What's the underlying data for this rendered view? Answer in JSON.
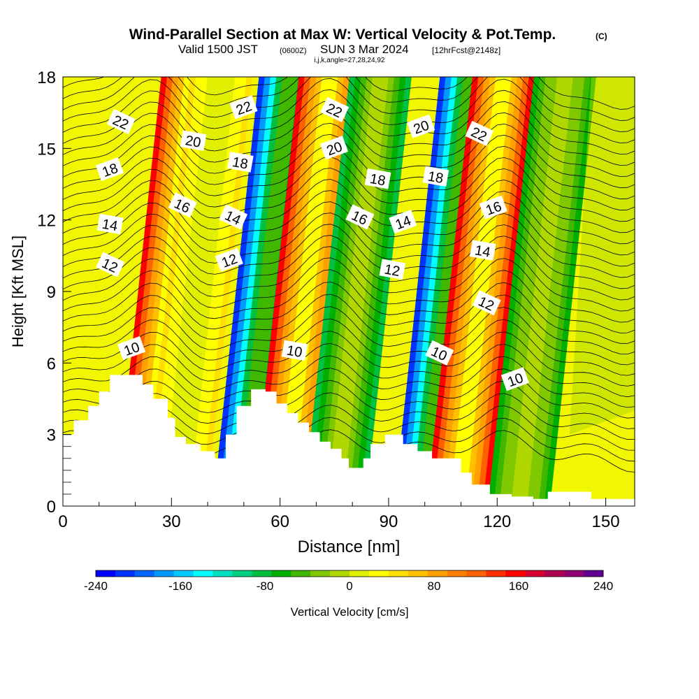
{
  "header": {
    "title": "Wind-Parallel Section at Max W: Vertical Velocity & Pot.Temp.",
    "copyright": "(C)",
    "valid_prefix": "Valid 1500 JST",
    "valid_zulu": "(0600Z)",
    "valid_date": "SUN 3 Mar 2024",
    "forecast": "[12hrFcst@2148z]",
    "indices": "i,j,k,angle=27,28,24,92"
  },
  "chart_data": {
    "type": "heatmap",
    "title": "Wind-Parallel Section at Max W: Vertical Velocity & Pot.Temp.",
    "xlabel": "Distance [nm]",
    "ylabel": "Height [Kft MSL]",
    "xlim": [
      0,
      158
    ],
    "ylim": [
      0,
      18
    ],
    "x_ticks": [
      "0",
      "30",
      "60",
      "90",
      "120",
      "150"
    ],
    "x_tick_values": [
      0,
      30,
      60,
      90,
      120,
      150
    ],
    "y_ticks": [
      "0",
      "3",
      "6",
      "9",
      "12",
      "15",
      "18"
    ],
    "y_tick_values": [
      0,
      3,
      6,
      9,
      12,
      15,
      18
    ],
    "colorbar": {
      "label": "Vertical Velocity [cm/s]",
      "tick_labels": [
        "-240",
        "-160",
        "-80",
        "0",
        "80",
        "160",
        "240"
      ],
      "min": -240,
      "max": 240,
      "colors": [
        "#0000ff",
        "#0033ff",
        "#0066ff",
        "#0099ff",
        "#00ccff",
        "#00ffff",
        "#00e0c0",
        "#00d080",
        "#00c040",
        "#00b000",
        "#40b800",
        "#80c800",
        "#b0d800",
        "#e0f000",
        "#ffff00",
        "#ffe000",
        "#ffc000",
        "#ffa000",
        "#ff8000",
        "#ff6000",
        "#ff3000",
        "#ff0000",
        "#d80030",
        "#b00050",
        "#900070",
        "#600090"
      ]
    },
    "vertical_velocity_bands": [
      {
        "x": 27,
        "w": 150
      },
      {
        "x": 35,
        "w": 40
      },
      {
        "x": 54,
        "w": -220
      },
      {
        "x": 65,
        "w": 150
      },
      {
        "x": 79,
        "w": -80
      },
      {
        "x": 104,
        "w": -220
      },
      {
        "x": 113,
        "w": 150
      },
      {
        "x": 130,
        "w": -60
      }
    ],
    "terrain_kft": [
      [
        0,
        3.0
      ],
      [
        3,
        3.6
      ],
      [
        7,
        4.2
      ],
      [
        10,
        4.8
      ],
      [
        13,
        5.5
      ],
      [
        19,
        5.5
      ],
      [
        22,
        5.1
      ],
      [
        25,
        4.5
      ],
      [
        29,
        3.7
      ],
      [
        31,
        2.9
      ],
      [
        34,
        2.6
      ],
      [
        38,
        2.3
      ],
      [
        42,
        2.0
      ],
      [
        45,
        3.0
      ],
      [
        48,
        4.2
      ],
      [
        52,
        4.9
      ],
      [
        56,
        4.8
      ],
      [
        59,
        4.3
      ],
      [
        62,
        3.9
      ],
      [
        65,
        3.5
      ],
      [
        68,
        3.1
      ],
      [
        71,
        2.7
      ],
      [
        74,
        2.4
      ],
      [
        77,
        2.0
      ],
      [
        79,
        1.6
      ],
      [
        83,
        2.0
      ],
      [
        85,
        2.6
      ],
      [
        89,
        3.0
      ],
      [
        94,
        2.6
      ],
      [
        98,
        2.3
      ],
      [
        102,
        2.0
      ],
      [
        106,
        2.0
      ],
      [
        110,
        1.4
      ],
      [
        113,
        0.9
      ],
      [
        118,
        0.5
      ],
      [
        124,
        0.4
      ],
      [
        130,
        0.3
      ],
      [
        134,
        0.6
      ],
      [
        140,
        0.6
      ],
      [
        146,
        0.3
      ],
      [
        158,
        0.3
      ]
    ],
    "theta_labels": [
      {
        "text": "22",
        "x": 16,
        "y": 16.1
      },
      {
        "text": "18",
        "x": 13,
        "y": 14.1
      },
      {
        "text": "14",
        "x": 13,
        "y": 11.8
      },
      {
        "text": "12",
        "x": 13,
        "y": 10.1
      },
      {
        "text": "10",
        "x": 19,
        "y": 6.6
      },
      {
        "text": "20",
        "x": 36,
        "y": 15.3
      },
      {
        "text": "16",
        "x": 33,
        "y": 12.6
      },
      {
        "text": "22",
        "x": 50,
        "y": 16.7
      },
      {
        "text": "18",
        "x": 49,
        "y": 14.4
      },
      {
        "text": "14",
        "x": 47,
        "y": 12.1
      },
      {
        "text": "12",
        "x": 46,
        "y": 10.3
      },
      {
        "text": "10",
        "x": 64,
        "y": 6.5
      },
      {
        "text": "22",
        "x": 75,
        "y": 16.6
      },
      {
        "text": "20",
        "x": 75,
        "y": 15.0
      },
      {
        "text": "18",
        "x": 87,
        "y": 13.7
      },
      {
        "text": "16",
        "x": 82,
        "y": 12.1
      },
      {
        "text": "14",
        "x": 94,
        "y": 11.9
      },
      {
        "text": "12",
        "x": 91,
        "y": 9.9
      },
      {
        "text": "10",
        "x": 104,
        "y": 6.4
      },
      {
        "text": "20",
        "x": 99,
        "y": 15.9
      },
      {
        "text": "18",
        "x": 103,
        "y": 13.8
      },
      {
        "text": "22",
        "x": 115,
        "y": 15.6
      },
      {
        "text": "16",
        "x": 119,
        "y": 12.5
      },
      {
        "text": "14",
        "x": 116,
        "y": 10.7
      },
      {
        "text": "12",
        "x": 117,
        "y": 8.5
      },
      {
        "text": "10",
        "x": 125,
        "y": 5.3
      }
    ]
  }
}
